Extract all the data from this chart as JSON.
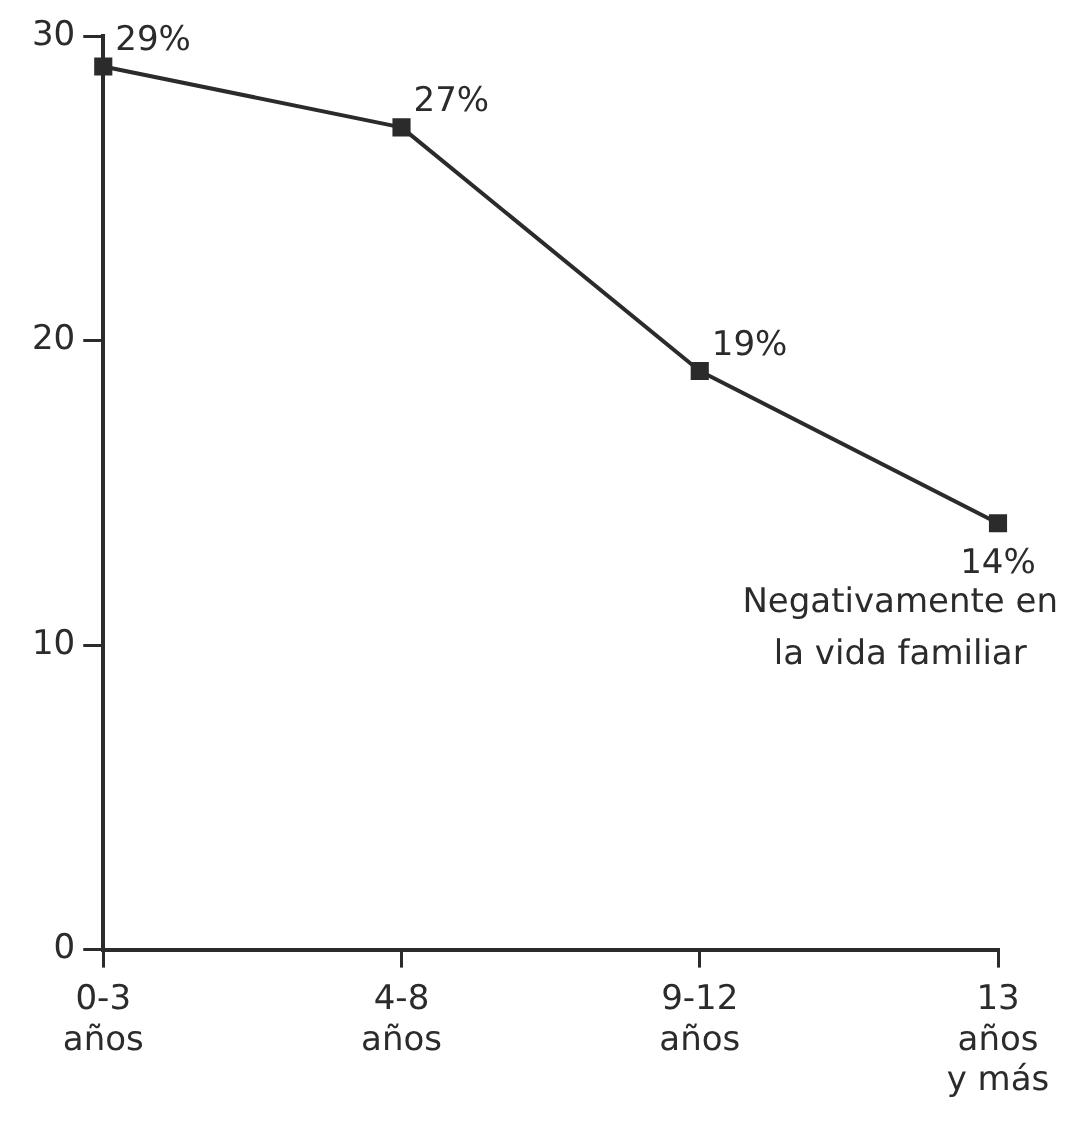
{
  "chart_data": {
    "type": "line",
    "categories": [
      "0-3\naños",
      "4-8\naños",
      "9-12\naños",
      "13\naños\ny más"
    ],
    "series": [
      {
        "color": "#2b2b2b",
        "values": [
          29,
          27,
          19,
          14
        ],
        "value_labels": [
          "29%",
          "27%",
          "19%",
          "14%"
        ]
      }
    ],
    "ylim": [
      0,
      30
    ],
    "yticks": [
      0,
      10,
      20,
      30
    ],
    "grid": false,
    "legend": false,
    "marker": "square",
    "line_style": "solid",
    "annotations": [
      "Negativamente en\nla vida familiar"
    ]
  }
}
